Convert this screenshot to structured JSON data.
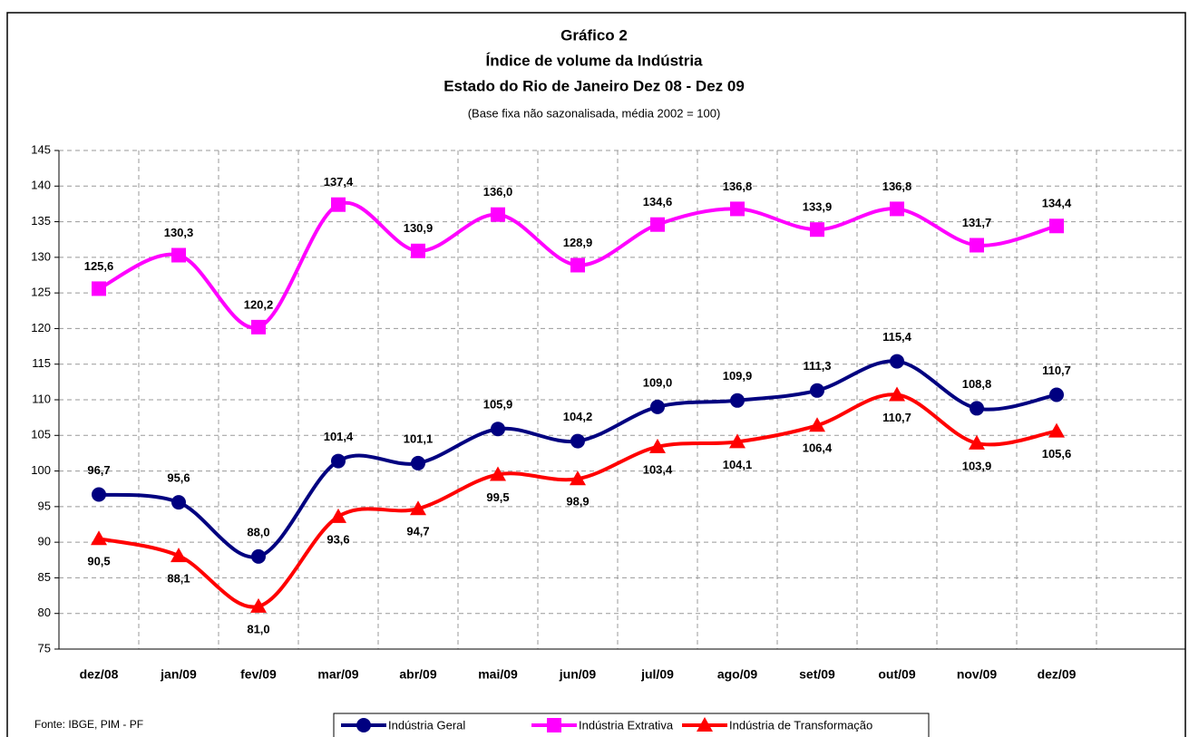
{
  "chart_data": {
    "type": "line",
    "title": "Gráfico 2",
    "subtitle_lines": [
      "Índice de volume da Indústria",
      "Estado do Rio de Janeiro Dez 08 - Dez 09"
    ],
    "note": "(Base fixa não sazonalisada, média 2002 = 100)",
    "source": "Fonte: IBGE, PIM - PF",
    "categories": [
      "dez/08",
      "jan/09",
      "fev/09",
      "mar/09",
      "abr/09",
      "mai/09",
      "jun/09",
      "jul/09",
      "ago/09",
      "set/09",
      "out/09",
      "nov/09",
      "dez/09"
    ],
    "ylim": [
      75,
      145
    ],
    "yticks": [
      75,
      80,
      85,
      90,
      95,
      100,
      105,
      110,
      115,
      120,
      125,
      130,
      135,
      140,
      145
    ],
    "grid": true,
    "series": [
      {
        "name": "Indústria Geral",
        "color": "#000080",
        "marker": "circle",
        "values": [
          96.7,
          95.6,
          88.0,
          101.4,
          101.1,
          105.9,
          104.2,
          109.0,
          109.9,
          111.3,
          115.4,
          108.8,
          110.7
        ],
        "value_labels": [
          "96,7",
          "95,6",
          "88,0",
          "101,4",
          "101,1",
          "105,9",
          "104,2",
          "109,0",
          "109,9",
          "111,3",
          "115,4",
          "108,8",
          "110,7"
        ]
      },
      {
        "name": "Indústria Extrativa",
        "color": "#ff00ff",
        "marker": "square",
        "values": [
          125.6,
          130.3,
          120.2,
          137.4,
          130.9,
          136.0,
          128.9,
          134.6,
          136.8,
          133.9,
          136.8,
          131.7,
          134.4
        ],
        "value_labels": [
          "125,6",
          "130,3",
          "120,2",
          "137,4",
          "130,9",
          "136,0",
          "128,9",
          "134,6",
          "136,8",
          "133,9",
          "136,8",
          "131,7",
          "134,4"
        ]
      },
      {
        "name": "Indústria de Transformação",
        "color": "#ff0000",
        "marker": "triangle",
        "values": [
          90.5,
          88.1,
          81.0,
          93.6,
          94.7,
          99.5,
          98.9,
          103.4,
          104.1,
          106.4,
          110.7,
          103.9,
          105.6
        ],
        "value_labels": [
          "90,5",
          "88,1",
          "81,0",
          "93,6",
          "94,7",
          "99,5",
          "98,9",
          "103,4",
          "104,1",
          "106,4",
          "110,7",
          "103,9",
          "105,6"
        ]
      }
    ]
  }
}
